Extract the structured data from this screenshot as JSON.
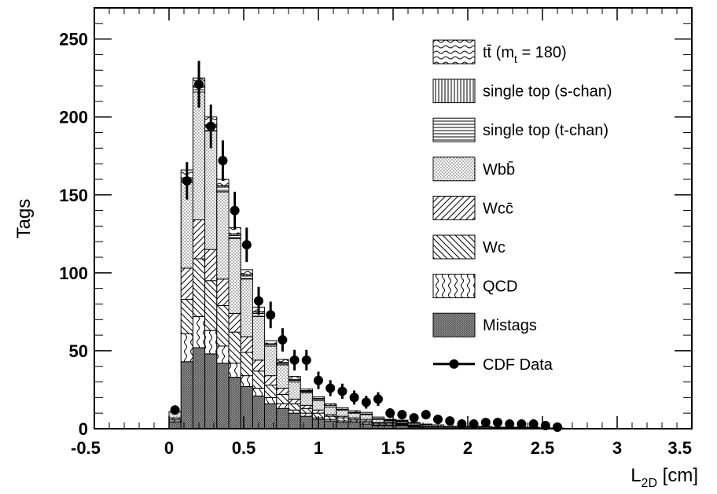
{
  "chart_data": {
    "type": "bar",
    "stacked": true,
    "xlabel": "L",
    "xlabel_sub": "2D",
    "xlabel_unit": " [cm]",
    "ylabel": "Tags",
    "xlim": [
      -0.5,
      3.5
    ],
    "ylim": [
      0,
      270
    ],
    "x_ticks": [
      -0.5,
      0,
      0.5,
      1,
      1.5,
      2,
      2.5,
      3,
      3.5
    ],
    "x_tick_labels": [
      "-0.5",
      "0",
      "0.5",
      "1",
      "1.5",
      "2",
      "2.5",
      "3",
      "3.5"
    ],
    "y_ticks": [
      0,
      50,
      100,
      150,
      200,
      250
    ],
    "y_tick_labels": [
      "0",
      "50",
      "100",
      "150",
      "200",
      "250"
    ],
    "grid": false,
    "legend_position": "right",
    "bin_edges": [
      0.0,
      0.08,
      0.16,
      0.24,
      0.32,
      0.4,
      0.48,
      0.56,
      0.64,
      0.72,
      0.8,
      0.88,
      0.96,
      1.04,
      1.12,
      1.2,
      1.28,
      1.36,
      1.44,
      1.52,
      1.6,
      1.68,
      1.76,
      1.84,
      1.92,
      2.0,
      2.08,
      2.16,
      2.24,
      2.32,
      2.4,
      2.48,
      2.56,
      2.64,
      2.72
    ],
    "series": [
      {
        "name": "Mistags",
        "pattern": "crosshatch",
        "values": [
          4,
          43,
          52,
          48,
          42,
          33,
          27,
          21,
          16,
          13,
          10,
          8,
          6,
          5,
          4,
          4,
          3,
          2,
          2,
          2,
          1,
          1,
          1,
          1,
          1,
          1,
          1,
          0.5,
          0.5,
          0.5,
          0.5,
          0.5,
          0.5,
          0
        ]
      },
      {
        "name": "QCD",
        "pattern": "wavy-vertical",
        "values": [
          1,
          18,
          20,
          15,
          11,
          9,
          7,
          5,
          4,
          3,
          2,
          2,
          1,
          1,
          1,
          1,
          1,
          0.5,
          0.5,
          0.5,
          0.5,
          0,
          0,
          0,
          0,
          0,
          0,
          0,
          0,
          0,
          0,
          0,
          0,
          0
        ]
      },
      {
        "name": "Wc",
        "pattern": "diagonal-backslash",
        "values": [
          1,
          22,
          37,
          32,
          26,
          20,
          15,
          11,
          8,
          6,
          4,
          3,
          3,
          2,
          2,
          1,
          1,
          1,
          1,
          0.5,
          0.5,
          0.5,
          0.5,
          0,
          0,
          0,
          0,
          0,
          0,
          0,
          0,
          0,
          0,
          0
        ]
      },
      {
        "name": "Wcc̄",
        "pattern": "diagonal-slash",
        "values": [
          1,
          20,
          25,
          20,
          17,
          12,
          10,
          7,
          6,
          4,
          3,
          2,
          2,
          1,
          1,
          1,
          1,
          0.5,
          0.5,
          0.5,
          0.5,
          0,
          0,
          0,
          0,
          0,
          0,
          0,
          0,
          0,
          0,
          0,
          0,
          0
        ]
      },
      {
        "name": "Wbb̄",
        "pattern": "dots",
        "values": [
          4,
          55,
          82,
          76,
          56,
          48,
          37,
          28,
          19,
          15,
          11,
          8,
          6,
          5,
          4,
          3,
          3,
          2,
          1,
          1,
          1,
          1,
          1,
          0.5,
          0.5,
          0.5,
          0.5,
          0.5,
          0.5,
          0.5,
          0.5,
          0,
          0,
          0
        ]
      },
      {
        "name": "single top (t-chan)",
        "pattern": "horizontal",
        "values": [
          0,
          2,
          3,
          3,
          3,
          2,
          2,
          2,
          1,
          1,
          1,
          1,
          1,
          1,
          0.5,
          0.5,
          0.5,
          0.5,
          0.5,
          0.5,
          0,
          0,
          0,
          0,
          0,
          0,
          0,
          0,
          0,
          0,
          0,
          0,
          0,
          0
        ]
      },
      {
        "name": "single top (s-chan)",
        "pattern": "vertical",
        "values": [
          0,
          1,
          1,
          1,
          1,
          1,
          1,
          1,
          0.5,
          0.5,
          0.5,
          0.5,
          0.5,
          0,
          0,
          0,
          0,
          0,
          0,
          0,
          0,
          0,
          0,
          0,
          0,
          0,
          0,
          0,
          0,
          0,
          0,
          0,
          0,
          0
        ]
      },
      {
        "name": "tt̄ (m",
        "name_sub": "t",
        "name_after": " = 180)",
        "pattern": "wavy-horizontal",
        "values": [
          0,
          5,
          5,
          5,
          4,
          4,
          3,
          3,
          2,
          2,
          2,
          1,
          1,
          1,
          1,
          1,
          1,
          1,
          0.5,
          0.5,
          0.5,
          0.5,
          0,
          0,
          0,
          0,
          0,
          0,
          0,
          0,
          0,
          0,
          0,
          0
        ]
      }
    ],
    "data_points": {
      "name": "CDF Data",
      "x": [
        0.04,
        0.12,
        0.2,
        0.28,
        0.36,
        0.44,
        0.52,
        0.6,
        0.68,
        0.76,
        0.84,
        0.92,
        1.0,
        1.08,
        1.16,
        1.24,
        1.32,
        1.4,
        1.48,
        1.56,
        1.64,
        1.72,
        1.8,
        1.88,
        1.96,
        2.04,
        2.12,
        2.2,
        2.28,
        2.36,
        2.44,
        2.52,
        2.6
      ],
      "y": [
        12,
        159,
        221,
        194,
        172,
        140,
        118,
        82,
        73,
        57,
        44,
        44,
        31,
        26,
        24,
        20,
        17,
        19,
        10,
        9,
        7,
        9,
        6,
        5,
        3,
        3,
        4,
        4,
        3,
        3,
        3,
        2,
        1
      ],
      "y_err": [
        3,
        12,
        15,
        14,
        13,
        12,
        11,
        9,
        8.5,
        7.5,
        6.6,
        6.6,
        5.6,
        5.1,
        4.9,
        4.5,
        4.1,
        4.4,
        3.2,
        3,
        2.7,
        3,
        2.5,
        2.2,
        1.7,
        1.7,
        2,
        2,
        1.7,
        1.7,
        1.7,
        1.4,
        1
      ]
    }
  }
}
